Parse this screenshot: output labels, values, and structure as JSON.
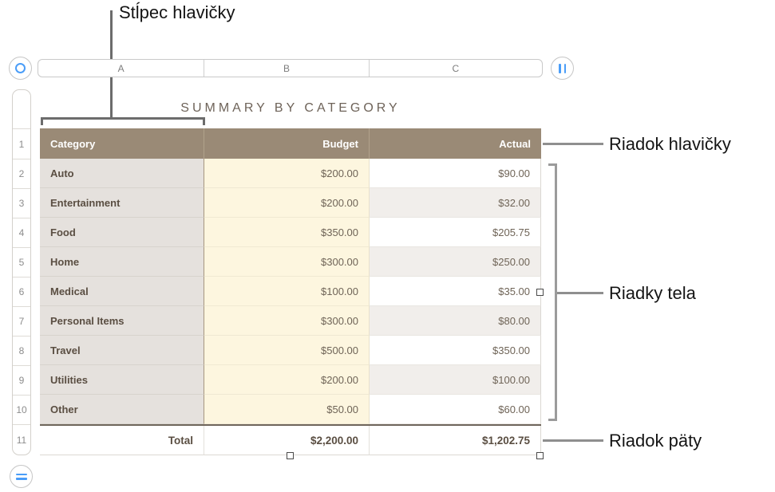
{
  "annotations": {
    "header_column": "Stĺpec hlavičky",
    "header_row": "Riadok hlavičky",
    "body_rows": "Riadky tela",
    "footer_row": "Riadok päty"
  },
  "column_bar": {
    "a": "A",
    "b": "B",
    "c": "C"
  },
  "row_numbers": [
    "1",
    "2",
    "3",
    "4",
    "5",
    "6",
    "7",
    "8",
    "9",
    "10",
    "11"
  ],
  "sheet": {
    "title": "SUMMARY BY CATEGORY"
  },
  "table": {
    "header": {
      "category": "Category",
      "budget": "Budget",
      "actual": "Actual"
    },
    "rows": [
      {
        "category": "Auto",
        "budget": "$200.00",
        "actual": "$90.00"
      },
      {
        "category": "Entertainment",
        "budget": "$200.00",
        "actual": "$32.00"
      },
      {
        "category": "Food",
        "budget": "$350.00",
        "actual": "$205.75"
      },
      {
        "category": "Home",
        "budget": "$300.00",
        "actual": "$250.00"
      },
      {
        "category": "Medical",
        "budget": "$100.00",
        "actual": "$35.00"
      },
      {
        "category": "Personal Items",
        "budget": "$300.00",
        "actual": "$80.00"
      },
      {
        "category": "Travel",
        "budget": "$500.00",
        "actual": "$350.00"
      },
      {
        "category": "Utilities",
        "budget": "$200.00",
        "actual": "$100.00"
      },
      {
        "category": "Other",
        "budget": "$50.00",
        "actual": "$60.00"
      }
    ],
    "footer": {
      "label": "Total",
      "budget": "$2,200.00",
      "actual": "$1,202.75"
    }
  },
  "colors": {
    "accent_blue": "#4a9df8",
    "header_row_bg": "#9a8a76",
    "header_column_bg": "#e5e1dd",
    "budget_column_bg": "#fdf6df",
    "actual_alt_bg": "#f1eeeb",
    "title_text": "#6e6359"
  }
}
